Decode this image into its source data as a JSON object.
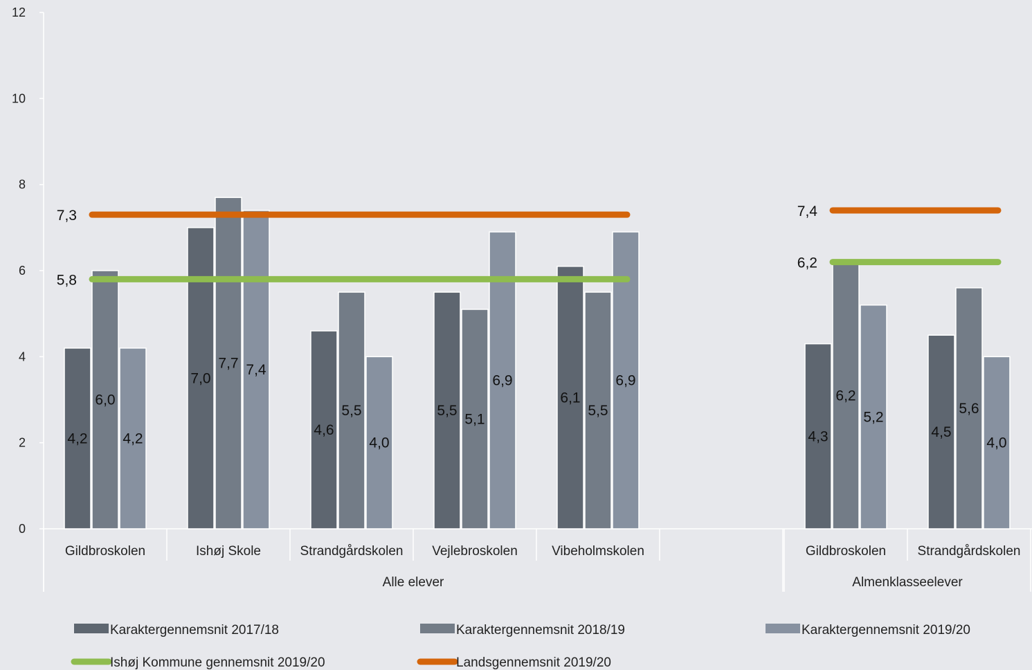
{
  "chart_data": {
    "type": "bar",
    "ylim": [
      0,
      12
    ],
    "yticks": [
      0,
      2,
      4,
      6,
      8,
      10,
      12
    ],
    "grid": false,
    "legend_position": "bottom",
    "groups": [
      {
        "label": "Alle elever",
        "categories": [
          "Gildbroskolen",
          "Ishøj Skole",
          "Strandgårdskolen",
          "Vejlebroskolen",
          "Vibeholmskolen",
          ""
        ],
        "series_values": [
          [
            4.2,
            7.0,
            4.6,
            5.5,
            6.1,
            null
          ],
          [
            6.0,
            7.7,
            5.5,
            5.1,
            5.5,
            null
          ],
          [
            4.2,
            7.4,
            4.0,
            6.9,
            6.9,
            null
          ]
        ],
        "value_labels": [
          [
            "4,2",
            "7,0",
            "4,6",
            "5,5",
            "6,1"
          ],
          [
            "6,0",
            "7,7",
            "5,5",
            "5,1",
            "5,5"
          ],
          [
            "4,2",
            "7,4",
            "4,0",
            "6,9",
            "6,9"
          ]
        ],
        "lines": [
          {
            "series": "Ishøj Kommune gennemsnit 2019/20",
            "value": 5.8,
            "label": "5,8"
          },
          {
            "series": "Landsgennemsnit 2019/20",
            "value": 7.3,
            "label": "7,3"
          }
        ]
      },
      {
        "label": "Almenklasseelever",
        "categories": [
          "Gildbroskolen",
          "Strandgårdskolen"
        ],
        "series_values": [
          [
            4.3,
            4.5
          ],
          [
            6.2,
            5.6
          ],
          [
            5.2,
            4.0
          ]
        ],
        "value_labels": [
          [
            "4,3",
            "4,5"
          ],
          [
            "6,2",
            "5,6"
          ],
          [
            "5,2",
            "4,0"
          ]
        ],
        "lines": [
          {
            "series": "Ishøj Kommune gennemsnit 2019/20",
            "value": 6.2,
            "label": "6,2"
          },
          {
            "series": "Landsgennemsnit 2019/20",
            "value": 7.4,
            "label": "7,4"
          }
        ]
      }
    ],
    "series": [
      {
        "name": "Karaktergennemsnit 2017/18",
        "kind": "bar",
        "color": "#5e6670"
      },
      {
        "name": "Karaktergennemsnit 2018/19",
        "kind": "bar",
        "color": "#737c87"
      },
      {
        "name": "Karaktergennemsnit 2019/20",
        "kind": "bar",
        "color": "#8791a0"
      },
      {
        "name": "Ishøj Kommune gennemsnit 2019/20",
        "kind": "line",
        "color": "#8fbc4f"
      },
      {
        "name": "Landsgennemsnit 2019/20",
        "kind": "line",
        "color": "#d4650b"
      }
    ]
  }
}
